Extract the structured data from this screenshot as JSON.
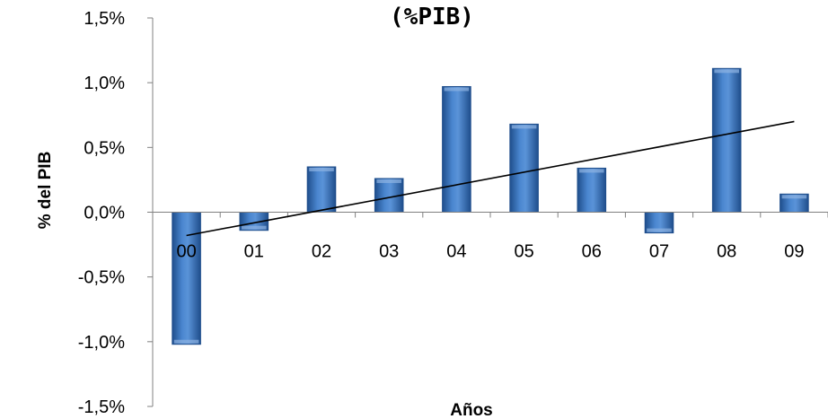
{
  "chart_data": {
    "type": "bar",
    "title": "(%PIB)",
    "xlabel": "Años",
    "ylabel": "% del PIB",
    "categories": [
      "00",
      "01",
      "02",
      "03",
      "04",
      "05",
      "06",
      "07",
      "08",
      "09"
    ],
    "values": [
      -1.02,
      -0.14,
      0.35,
      0.26,
      0.97,
      0.68,
      0.34,
      -0.16,
      1.11,
      0.14
    ],
    "ylim": [
      -1.5,
      1.5
    ],
    "yticks": [
      -1.5,
      -1.0,
      -0.5,
      0.0,
      0.5,
      1.0,
      1.5
    ],
    "ytick_labels": [
      "-1,5%",
      "-1,0%",
      "-0,5%",
      "0,0%",
      "0,5%",
      "1,0%",
      "1,5%"
    ],
    "trendline": {
      "type": "linear",
      "start_value": -0.18,
      "end_value": 0.7
    },
    "grid": false,
    "legend": "none",
    "colors": {
      "bar": "#3d73b8",
      "bar_dark": "#1f4e8c",
      "bar_light": "#8fb4e3",
      "trendline": "#000000",
      "axis": "#808080"
    }
  }
}
